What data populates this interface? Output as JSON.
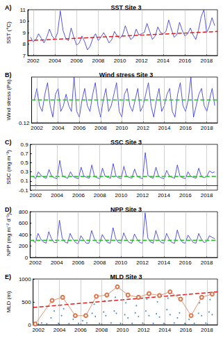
{
  "chart_data": [
    {
      "type": "line",
      "annotation": "A)",
      "title": "SST Site 3",
      "ylabel": "SST (°C)",
      "xlim": [
        2001.5,
        2019
      ],
      "xticks": [
        2002,
        2004,
        2006,
        2008,
        2010,
        2012,
        2014,
        2016,
        2018
      ],
      "ylim": [
        7,
        11
      ],
      "yticks": [
        7,
        8,
        9,
        10,
        11
      ],
      "grid": true,
      "x": [
        2001.75,
        2002,
        2002.25,
        2002.5,
        2002.75,
        2003,
        2003.25,
        2003.5,
        2003.75,
        2004,
        2004.25,
        2004.5,
        2004.75,
        2005,
        2005.25,
        2005.5,
        2005.75,
        2006,
        2006.25,
        2006.5,
        2006.75,
        2007,
        2007.25,
        2007.5,
        2007.75,
        2008,
        2008.25,
        2008.5,
        2008.75,
        2009,
        2009.25,
        2009.5,
        2009.75,
        2010,
        2010.25,
        2010.5,
        2010.75,
        2011,
        2011.25,
        2011.5,
        2011.75,
        2012,
        2012.25,
        2012.5,
        2012.75,
        2013,
        2013.25,
        2013.5,
        2013.75,
        2014,
        2014.25,
        2014.5,
        2014.75,
        2015,
        2015.25,
        2015.5,
        2015.75,
        2016,
        2016.25,
        2016.5,
        2016.75,
        2017,
        2017.25,
        2017.5,
        2017.75,
        2018,
        2018.25,
        2018.5,
        2018.75
      ],
      "series": [
        {
          "type": "line",
          "color": "#2a2ad4",
          "line_style": "solid",
          "marker": "none",
          "values": [
            8.6,
            8.2,
            8.4,
            8.9,
            8.5,
            8.1,
            8.6,
            9.3,
            8.7,
            8.4,
            9.0,
            10.9,
            9.2,
            8.5,
            8.3,
            9.4,
            8.6,
            7.9,
            8.1,
            8.7,
            8.2,
            7.5,
            7.8,
            8.5,
            8.9,
            8.3,
            8.6,
            9.0,
            8.6,
            8.1,
            8.4,
            9.1,
            8.7,
            8.5,
            8.8,
            9.6,
            8.9,
            8.4,
            8.6,
            9.3,
            8.8,
            8.9,
            9.0,
            9.8,
            9.1,
            8.4,
            8.7,
            9.5,
            9.0,
            8.9,
            9.1,
            10.1,
            9.3,
            8.6,
            8.8,
            9.9,
            9.2,
            8.7,
            8.9,
            9.4,
            8.8,
            8.4,
            9.2,
            10.4,
            11.0,
            9.0,
            9.5,
            10.3,
            9.6
          ]
        },
        {
          "type": "line",
          "color": "#e41a1c",
          "line_style": "dashed",
          "marker": "none",
          "x": [
            2001.5,
            2019
          ],
          "values": [
            8.3,
            9.1
          ]
        }
      ]
    },
    {
      "type": "line",
      "annotation": "B)",
      "title": "Wind stress Site 3",
      "ylabel": "Wind stress (Pa)",
      "xlim": [
        2001.5,
        2019
      ],
      "xticks": [
        2002,
        2004,
        2006,
        2008,
        2010,
        2012,
        2014,
        2016,
        2018
      ],
      "ylim": [
        0.12,
        0.2
      ],
      "yticks": [
        0.12
      ],
      "grid": true,
      "x": [
        2001.75,
        2002,
        2002.25,
        2002.5,
        2002.75,
        2003,
        2003.25,
        2003.5,
        2003.75,
        2004,
        2004.25,
        2004.5,
        2004.75,
        2005,
        2005.25,
        2005.5,
        2005.75,
        2006,
        2006.25,
        2006.5,
        2006.75,
        2007,
        2007.25,
        2007.5,
        2007.75,
        2008,
        2008.25,
        2008.5,
        2008.75,
        2009,
        2009.25,
        2009.5,
        2009.75,
        2010,
        2010.25,
        2010.5,
        2010.75,
        2011,
        2011.25,
        2011.5,
        2011.75,
        2012,
        2012.25,
        2012.5,
        2012.75,
        2013,
        2013.25,
        2013.5,
        2013.75,
        2014,
        2014.25,
        2014.5,
        2014.75,
        2015,
        2015.25,
        2015.5,
        2015.75,
        2016,
        2016.25,
        2016.5,
        2016.75,
        2017,
        2017.25,
        2017.5,
        2017.75,
        2018,
        2018.25,
        2018.5,
        2018.75
      ],
      "series": [
        {
          "type": "line",
          "color": "#2a2ad4",
          "line_style": "solid",
          "marker": "none",
          "values": [
            0.16,
            0.18,
            0.15,
            0.14,
            0.17,
            0.19,
            0.15,
            0.13,
            0.17,
            0.18,
            0.14,
            0.15,
            0.17,
            0.15,
            0.14,
            0.2,
            0.14,
            0.13,
            0.16,
            0.18,
            0.15,
            0.14,
            0.17,
            0.19,
            0.15,
            0.13,
            0.16,
            0.18,
            0.14,
            0.15,
            0.17,
            0.19,
            0.14,
            0.13,
            0.17,
            0.18,
            0.15,
            0.14,
            0.16,
            0.18,
            0.14,
            0.15,
            0.17,
            0.19,
            0.15,
            0.13,
            0.16,
            0.18,
            0.14,
            0.15,
            0.17,
            0.18,
            0.14,
            0.13,
            0.17,
            0.19,
            0.15,
            0.14,
            0.16,
            0.2,
            0.13,
            0.15,
            0.17,
            0.18,
            0.15,
            0.14,
            0.16,
            0.18,
            0.15
          ]
        },
        {
          "type": "line",
          "color": "#22c422",
          "line_style": "dashed",
          "marker": "none",
          "x": [
            2001.5,
            2019
          ],
          "values": [
            0.16,
            0.16
          ]
        }
      ]
    },
    {
      "type": "line",
      "annotation": "C)",
      "title": "SSC Site 3",
      "ylabel": "SSC (mg m⁻³)",
      "xlim": [
        2001.5,
        2019
      ],
      "xticks": [
        2002,
        2004,
        2006,
        2008,
        2010,
        2012,
        2014,
        2016,
        2018
      ],
      "ylim": [
        -0.1,
        0.9
      ],
      "yticks": [
        -0.1,
        0.1,
        0.3,
        0.5,
        0.7,
        0.9
      ],
      "grid": true,
      "x": [
        2001.75,
        2002,
        2002.25,
        2002.5,
        2002.75,
        2003,
        2003.25,
        2003.5,
        2003.75,
        2004,
        2004.25,
        2004.5,
        2004.75,
        2005,
        2005.25,
        2005.5,
        2005.75,
        2006,
        2006.25,
        2006.5,
        2006.75,
        2007,
        2007.25,
        2007.5,
        2007.75,
        2008,
        2008.25,
        2008.5,
        2008.75,
        2009,
        2009.25,
        2009.5,
        2009.75,
        2010,
        2010.25,
        2010.5,
        2010.75,
        2011,
        2011.25,
        2011.5,
        2011.75,
        2012,
        2012.25,
        2012.5,
        2012.75,
        2013,
        2013.25,
        2013.5,
        2013.75,
        2014,
        2014.25,
        2014.5,
        2014.75,
        2015,
        2015.25,
        2015.5,
        2015.75,
        2016,
        2016.25,
        2016.5,
        2016.75,
        2017,
        2017.25,
        2017.5,
        2017.75,
        2018,
        2018.25,
        2018.5,
        2018.75
      ],
      "series": [
        {
          "type": "line",
          "color": "#2a2ad4",
          "line_style": "solid",
          "marker": "none",
          "values": [
            0.2,
            0.15,
            0.3,
            0.22,
            0.18,
            0.16,
            0.35,
            0.2,
            0.17,
            0.15,
            0.55,
            0.22,
            0.18,
            0.16,
            0.3,
            0.2,
            0.17,
            0.15,
            0.4,
            0.21,
            0.18,
            0.16,
            0.45,
            0.2,
            0.17,
            0.15,
            0.38,
            0.2,
            0.18,
            0.16,
            0.48,
            0.21,
            0.17,
            0.15,
            0.42,
            0.2,
            0.18,
            0.16,
            0.36,
            0.2,
            0.17,
            0.15,
            0.72,
            0.22,
            0.18,
            0.16,
            0.4,
            0.2,
            0.17,
            0.15,
            0.33,
            0.21,
            0.18,
            0.16,
            0.45,
            0.2,
            0.17,
            0.15,
            0.3,
            0.2,
            0.18,
            0.16,
            0.38,
            0.2,
            0.17,
            0.2,
            0.32,
            0.28,
            0.3
          ]
        },
        {
          "type": "line",
          "color": "#22c422",
          "line_style": "dashed",
          "marker": "none",
          "x": [
            2001.5,
            2019
          ],
          "values": [
            0.2,
            0.2
          ]
        }
      ]
    },
    {
      "type": "line",
      "annotation": "D)",
      "title": "NPP Site 3",
      "ylabel": "NPP (mg m⁻² d⁻¹)",
      "xlim": [
        2001.5,
        2019
      ],
      "xticks": [
        2002,
        2004,
        2006,
        2008,
        2010,
        2012,
        2014,
        2016,
        2018
      ],
      "ylim": [
        0,
        800
      ],
      "yticks": [
        0,
        200,
        400,
        600,
        800
      ],
      "grid": true,
      "x": [
        2001.75,
        2002,
        2002.25,
        2002.5,
        2002.75,
        2003,
        2003.25,
        2003.5,
        2003.75,
        2004,
        2004.25,
        2004.5,
        2004.75,
        2005,
        2005.25,
        2005.5,
        2005.75,
        2006,
        2006.25,
        2006.5,
        2006.75,
        2007,
        2007.25,
        2007.5,
        2007.75,
        2008,
        2008.25,
        2008.5,
        2008.75,
        2009,
        2009.25,
        2009.5,
        2009.75,
        2010,
        2010.25,
        2010.5,
        2010.75,
        2011,
        2011.25,
        2011.5,
        2011.75,
        2012,
        2012.25,
        2012.5,
        2012.75,
        2013,
        2013.25,
        2013.5,
        2013.75,
        2014,
        2014.25,
        2014.5,
        2014.75,
        2015,
        2015.25,
        2015.5,
        2015.75,
        2016,
        2016.25,
        2016.5,
        2016.75,
        2017,
        2017.25,
        2017.5,
        2017.75,
        2018,
        2018.25,
        2018.5,
        2018.75
      ],
      "series": [
        {
          "type": "line",
          "color": "#2a2ad4",
          "line_style": "solid",
          "marker": "none",
          "values": [
            300,
            260,
            420,
            320,
            270,
            250,
            450,
            330,
            260,
            260,
            650,
            340,
            270,
            250,
            420,
            320,
            260,
            240,
            380,
            310,
            250,
            250,
            470,
            330,
            260,
            250,
            400,
            320,
            260,
            250,
            520,
            330,
            260,
            250,
            430,
            320,
            260,
            250,
            410,
            320,
            260,
            250,
            780,
            340,
            270,
            250,
            470,
            320,
            260,
            250,
            420,
            320,
            260,
            250,
            480,
            330,
            260,
            250,
            390,
            320,
            260,
            250,
            420,
            320,
            260,
            280,
            380,
            350,
            330
          ]
        },
        {
          "type": "line",
          "color": "#22c422",
          "line_style": "dashed",
          "marker": "none",
          "x": [
            2001.5,
            2019
          ],
          "values": [
            300,
            300
          ]
        }
      ]
    },
    {
      "type": "line",
      "annotation": "E)",
      "title": "MLD Site 3",
      "ylabel": "MLD (m)",
      "xlim": [
        2001.5,
        2019
      ],
      "xticks": [
        2002,
        2004,
        2006,
        2008,
        2010,
        2012,
        2014,
        2016,
        2018
      ],
      "ylim": [
        0,
        1000
      ],
      "yticks": [
        0,
        500,
        1000
      ],
      "grid": true,
      "series": [
        {
          "type": "scatter",
          "color": "#1f77b4",
          "marker": "dot",
          "x": [
            2002.3,
            2002.8,
            2003.2,
            2003.5,
            2003.9,
            2004.2,
            2004.4,
            2004.9,
            2005.3,
            2005.8,
            2006.2,
            2006.6,
            2007.1,
            2007.3,
            2007.4,
            2007.8,
            2008.2,
            2008.3,
            2008.4,
            2008.9,
            2009.2,
            2009.3,
            2009.4,
            2009.8,
            2010.2,
            2010.3,
            2010.5,
            2010.9,
            2011.2,
            2011.3,
            2011.5,
            2011.9,
            2012.2,
            2012.3,
            2012.5,
            2012.9,
            2013.2,
            2013.3,
            2013.5,
            2013.9,
            2014.2,
            2014.3,
            2014.5,
            2014.9,
            2015.2,
            2015.4,
            2015.9,
            2016.3,
            2016.8,
            2017.2,
            2017.3,
            2017.5,
            2017.9,
            2018.2,
            2018.3,
            2018.5
          ],
          "values": [
            40,
            20,
            150,
            300,
            30,
            200,
            350,
            25,
            120,
            30,
            90,
            40,
            250,
            450,
            180,
            30,
            280,
            520,
            200,
            40,
            300,
            600,
            250,
            30,
            220,
            480,
            150,
            30,
            260,
            420,
            180,
            35,
            300,
            560,
            200,
            30,
            240,
            500,
            170,
            30,
            330,
            580,
            220,
            40,
            150,
            260,
            30,
            120,
            30,
            250,
            480,
            200,
            35,
            280,
            550,
            220
          ]
        },
        {
          "type": "line",
          "color": "#d9774f",
          "line_style": "solid",
          "marker": "circle",
          "x": [
            2001.7,
            2003.3,
            2004.3,
            2005.5,
            2006.5,
            2007.5,
            2008.5,
            2009.5,
            2010.5,
            2011.5,
            2012.5,
            2013.5,
            2014.5,
            2015.5,
            2016.5,
            2017.5,
            2018.5
          ],
          "values": [
            20,
            530,
            600,
            200,
            200,
            620,
            650,
            830,
            650,
            600,
            680,
            640,
            720,
            560,
            200,
            600,
            670
          ]
        },
        {
          "type": "line",
          "color": "#e41a1c",
          "line_style": "dashed",
          "marker": "none",
          "x": [
            2001.5,
            2019
          ],
          "values": [
            380,
            720
          ]
        }
      ]
    }
  ]
}
